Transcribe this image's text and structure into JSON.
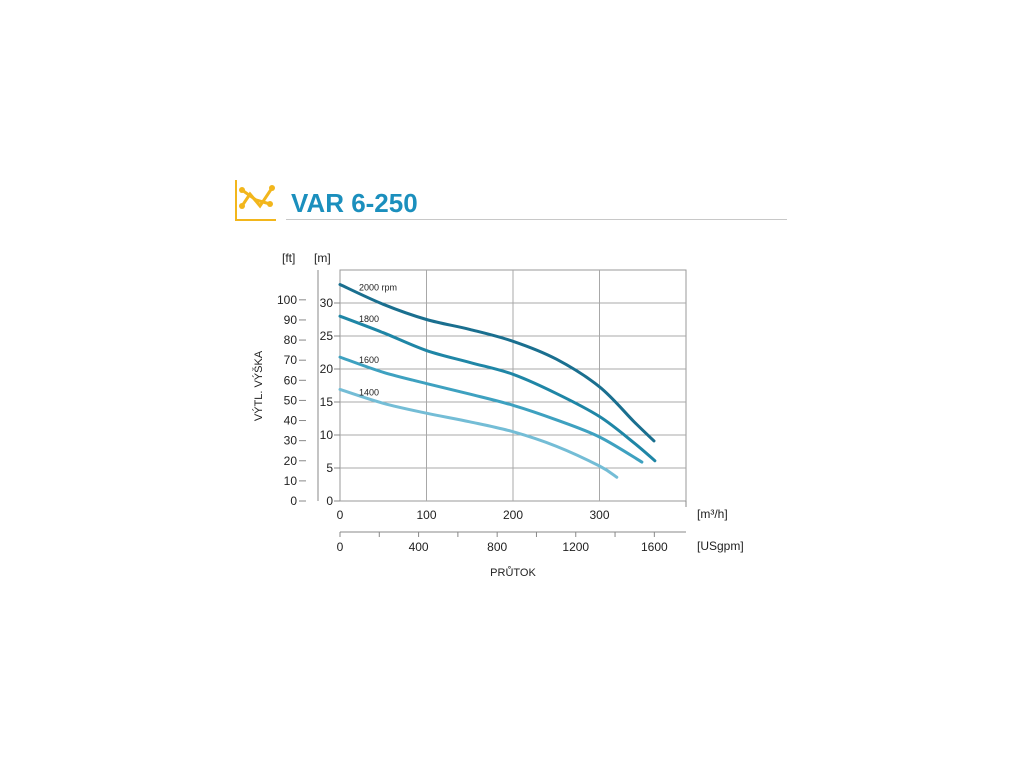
{
  "header": {
    "title": "VAR 6-250",
    "icon": "performance-chart-icon",
    "icon_color": "#f2b61c",
    "title_color": "#1b8fbd"
  },
  "chart_data": {
    "type": "line",
    "title": "VAR 6-250",
    "ylabel": "VÝTL. VÝŠKA",
    "xlabel": "PRŮTOK",
    "y_unit_m": "[m]",
    "y_unit_ft": "[ft]",
    "x_unit_m3h": "[m³/h]",
    "x_unit_gpm": "[USgpm]",
    "xlim": [
      0,
      400
    ],
    "ylim": [
      0,
      35
    ],
    "grid": true,
    "x_ticks": [
      "0",
      "100",
      "200",
      "300"
    ],
    "x_tick_values": [
      0,
      100,
      200,
      300
    ],
    "y_ticks": [
      "0",
      "5",
      "10",
      "15",
      "20",
      "25",
      "30"
    ],
    "y_tick_values": [
      0,
      5,
      10,
      15,
      20,
      25,
      30
    ],
    "ft_ticks": [
      "0",
      "10",
      "20",
      "30",
      "40",
      "50",
      "60",
      "70",
      "80",
      "90",
      "100"
    ],
    "ft_tick_values": [
      0,
      10,
      20,
      30,
      40,
      50,
      60,
      70,
      80,
      90,
      100
    ],
    "gpm_ticks": [
      "0",
      "400",
      "800",
      "1200",
      "1600"
    ],
    "gpm_tick_values": [
      0,
      400,
      800,
      1200,
      1600
    ],
    "series": [
      {
        "name": "2000 rpm",
        "color": "#1a6f8f",
        "x": [
          0,
          50,
          100,
          150,
          200,
          250,
          300,
          340,
          363
        ],
        "y": [
          32.8,
          29.8,
          27.5,
          26,
          24.2,
          21.5,
          17.3,
          12,
          9.1
        ]
      },
      {
        "name": "1800",
        "color": "#1f86a6",
        "x": [
          0,
          50,
          100,
          150,
          200,
          250,
          300,
          340,
          364
        ],
        "y": [
          28,
          25.5,
          22.8,
          21,
          19.2,
          16.3,
          12.8,
          8.8,
          6.1
        ]
      },
      {
        "name": "1600",
        "color": "#3ea1c0",
        "x": [
          0,
          50,
          100,
          150,
          200,
          250,
          300,
          349
        ],
        "y": [
          21.8,
          19.5,
          17.8,
          16.2,
          14.5,
          12.3,
          9.7,
          5.9
        ]
      },
      {
        "name": "1400",
        "color": "#74bdd6",
        "x": [
          0,
          50,
          100,
          150,
          200,
          250,
          300,
          320
        ],
        "y": [
          16.9,
          14.8,
          13.3,
          12,
          10.5,
          8.3,
          5.3,
          3.6
        ]
      }
    ]
  }
}
